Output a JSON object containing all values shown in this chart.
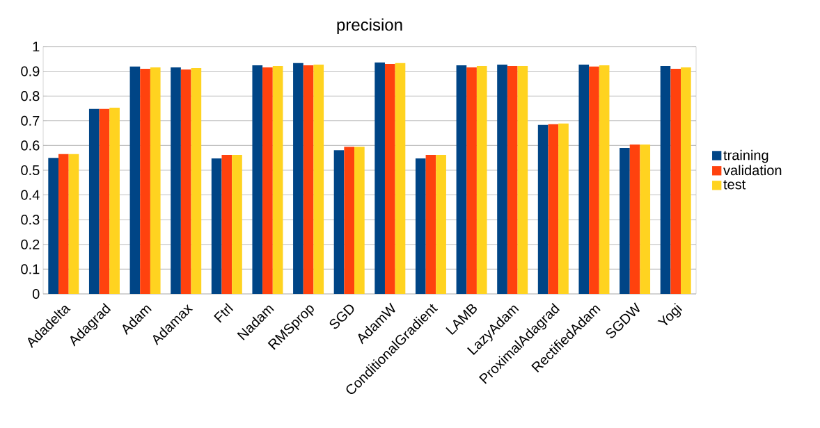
{
  "chart_data": {
    "type": "bar",
    "title": "precision",
    "categories": [
      "Adadelta",
      "Adagrad",
      "Adam",
      "Adamax",
      "Ftrl",
      "Nadam",
      "RMSprop",
      "SGD",
      "AdamW",
      "ConditionalGradient",
      "LAMB",
      "LazyAdam",
      "ProximalAdagrad",
      "RectifiedAdam",
      "SGDW",
      "Yogi"
    ],
    "series": [
      {
        "name": "training",
        "color": "#004586",
        "values": [
          0.55,
          0.748,
          0.919,
          0.916,
          0.548,
          0.924,
          0.933,
          0.581,
          0.936,
          0.548,
          0.924,
          0.927,
          0.683,
          0.927,
          0.59,
          0.921
        ]
      },
      {
        "name": "validation",
        "color": "#ff420e",
        "values": [
          0.565,
          0.748,
          0.91,
          0.907,
          0.562,
          0.916,
          0.924,
          0.595,
          0.93,
          0.562,
          0.916,
          0.921,
          0.686,
          0.919,
          0.604,
          0.91
        ]
      },
      {
        "name": "test",
        "color": "#ffd320",
        "values": [
          0.565,
          0.753,
          0.916,
          0.913,
          0.562,
          0.921,
          0.927,
          0.595,
          0.933,
          0.562,
          0.921,
          0.921,
          0.689,
          0.924,
          0.604,
          0.916
        ]
      }
    ],
    "ylim": [
      0,
      1
    ],
    "yticks": [
      0,
      0.1,
      0.2,
      0.3,
      0.4,
      0.5,
      0.6,
      0.7,
      0.8,
      0.9,
      1
    ],
    "grid": "y",
    "legend": "right"
  }
}
